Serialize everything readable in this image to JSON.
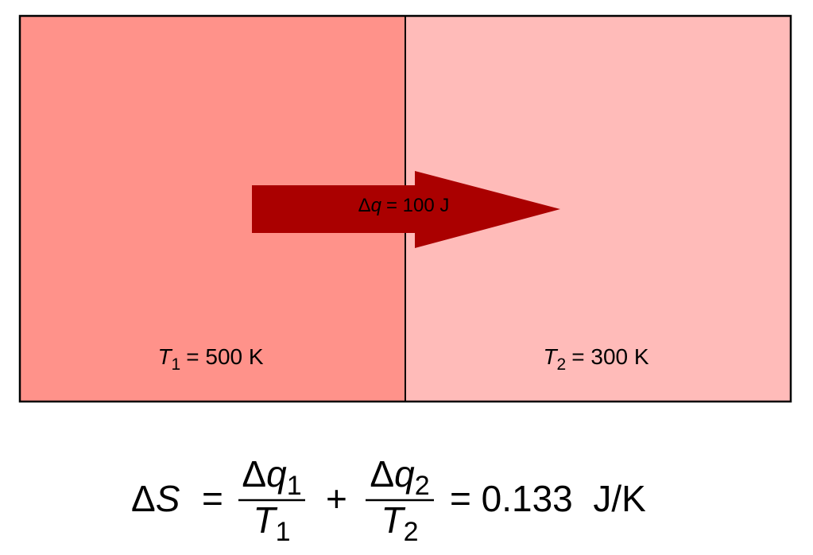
{
  "diagram": {
    "heat_label": {
      "delta": "Δ",
      "var": "q",
      "rest": "= 100 J"
    },
    "left_box": {
      "var": "T",
      "sub": "1",
      "rest": "= 500 K"
    },
    "right_box": {
      "var": "T",
      "sub": "2",
      "rest": "= 300 K"
    },
    "equation": {
      "lhs": {
        "delta": "Δ",
        "var": "S"
      },
      "eq1": "=",
      "frac1": {
        "num": {
          "delta": "Δ",
          "var": "q",
          "sub": "1"
        },
        "den": {
          "var": "T",
          "sub": "1"
        }
      },
      "plus": "+",
      "frac2": {
        "num": {
          "delta": "Δ",
          "var": "q",
          "sub": "2"
        },
        "den": {
          "var": "T",
          "sub": "2"
        }
      },
      "result": "= 0.133  J/K"
    }
  }
}
